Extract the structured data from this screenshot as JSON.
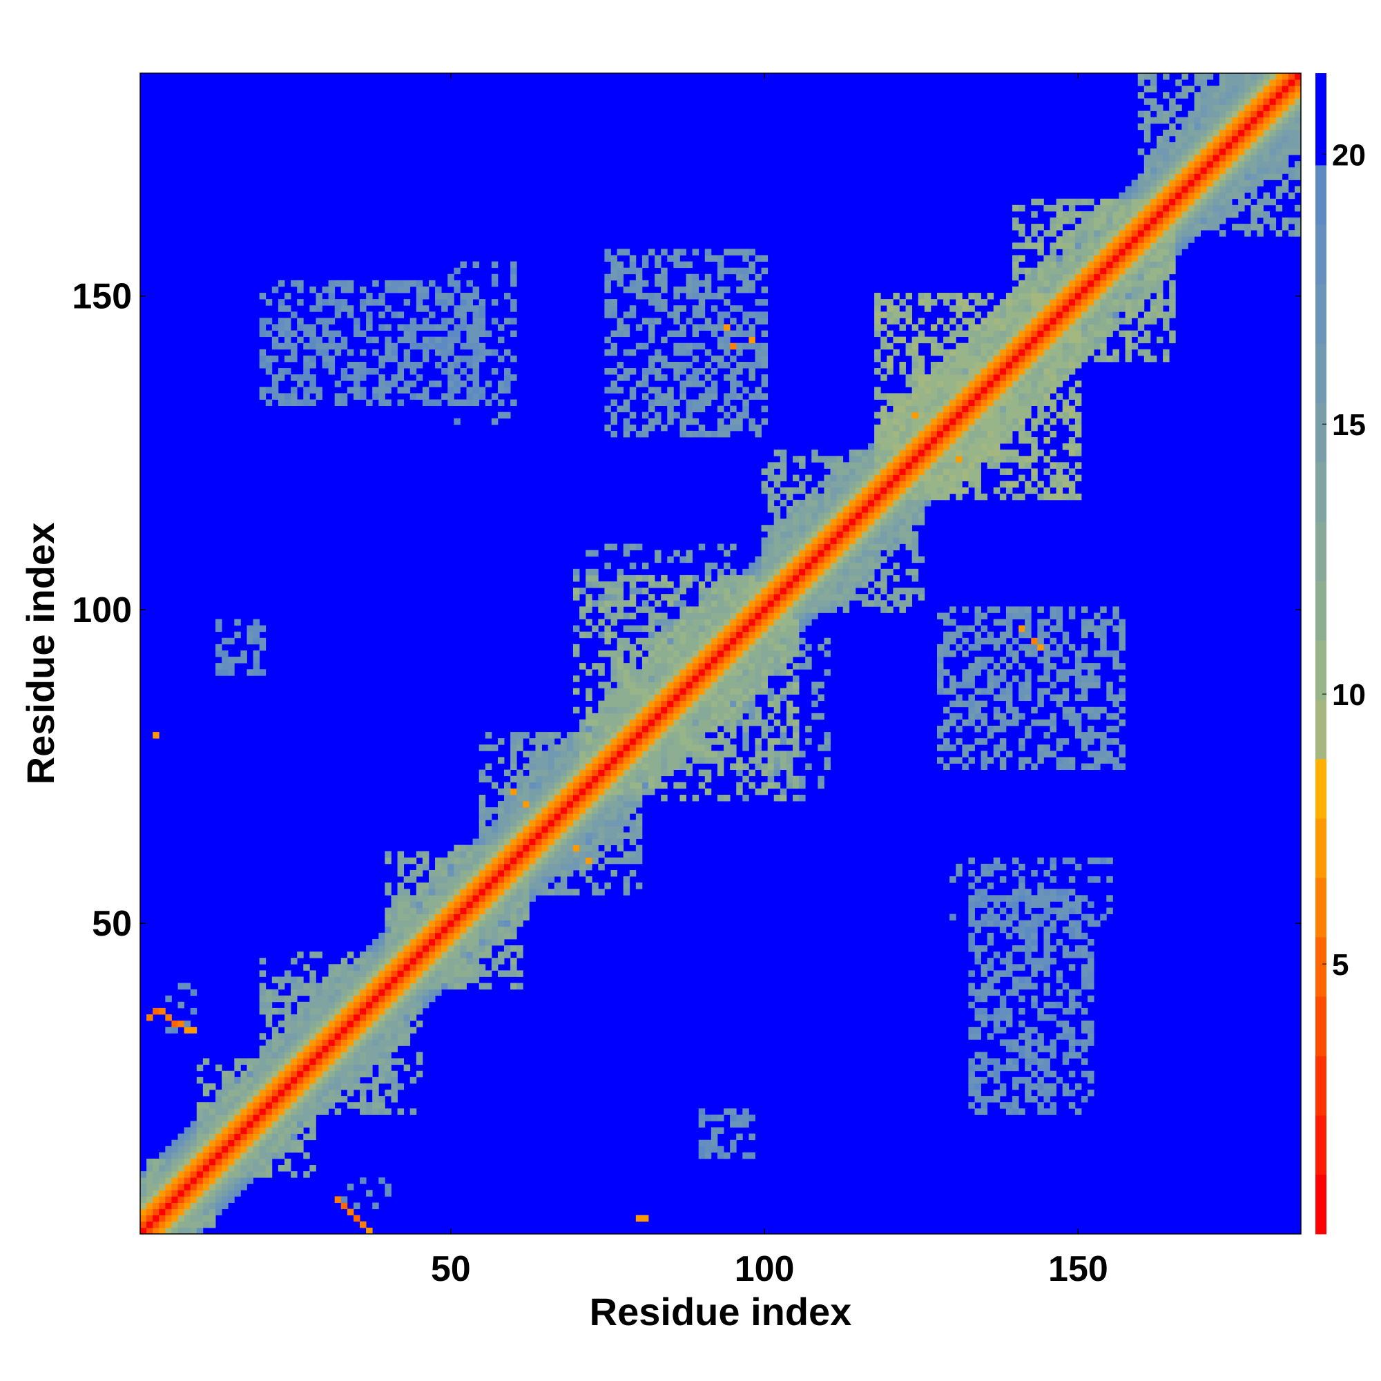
{
  "chart_data": {
    "type": "heatmap",
    "title": "",
    "xlabel": "Residue index",
    "ylabel": "Residue index",
    "n_residues": 185,
    "xlim": [
      1,
      185
    ],
    "ylim": [
      1,
      185
    ],
    "x_ticks": [
      50,
      100,
      150
    ],
    "y_ticks": [
      50,
      100,
      150
    ],
    "colorbar": {
      "range": [
        0,
        21.5
      ],
      "ticks": [
        5,
        10,
        15,
        20
      ],
      "levels": [
        {
          "from": 0,
          "to": 1.1,
          "color": "#ff0000"
        },
        {
          "from": 1.1,
          "to": 2.2,
          "color": "#ff1a00"
        },
        {
          "from": 2.2,
          "to": 3.3,
          "color": "#ff3300"
        },
        {
          "from": 3.3,
          "to": 4.4,
          "color": "#ff4d00"
        },
        {
          "from": 4.4,
          "to": 5.5,
          "color": "#ff6600"
        },
        {
          "from": 5.5,
          "to": 6.6,
          "color": "#ff7f00"
        },
        {
          "from": 6.6,
          "to": 7.7,
          "color": "#ff9900"
        },
        {
          "from": 7.7,
          "to": 8.8,
          "color": "#ffb000"
        },
        {
          "from": 8.8,
          "to": 9.9,
          "color": "#a3b77f"
        },
        {
          "from": 9.9,
          "to": 11.0,
          "color": "#98b489"
        },
        {
          "from": 11.0,
          "to": 12.1,
          "color": "#8eae91"
        },
        {
          "from": 12.1,
          "to": 13.2,
          "color": "#86a99a"
        },
        {
          "from": 13.2,
          "to": 14.3,
          "color": "#7fa4a1"
        },
        {
          "from": 14.3,
          "to": 15.4,
          "color": "#789ea9"
        },
        {
          "from": 15.4,
          "to": 16.5,
          "color": "#7199b1"
        },
        {
          "from": 16.5,
          "to": 17.6,
          "color": "#6a94b8"
        },
        {
          "from": 17.6,
          "to": 18.7,
          "color": "#648fbe"
        },
        {
          "from": 18.7,
          "to": 19.8,
          "color": "#5e8ac4"
        },
        {
          "from": 19.8,
          "to": 21.5,
          "color": "#0000ff"
        }
      ]
    },
    "background_value": 21,
    "diagonal_profile": [
      {
        "offset": 0,
        "value": 0.5
      },
      {
        "offset": 1,
        "value": 3.8
      },
      {
        "offset": 2,
        "value": 5.6
      },
      {
        "offset": 3,
        "value": 7.0
      },
      {
        "offset": 4,
        "value": 9.5
      },
      {
        "offset": 5,
        "value": 11.5
      },
      {
        "offset": 6,
        "value": 13.5
      },
      {
        "offset": 7,
        "value": 15.0
      },
      {
        "offset": 8,
        "value": 16.5
      },
      {
        "offset": 9,
        "value": 18.5
      }
    ],
    "contact_regions": [
      {
        "x": [
          1,
          10
        ],
        "y": [
          1,
          12
        ],
        "value": 13
      },
      {
        "x": [
          10,
          25
        ],
        "y": [
          10,
          28
        ],
        "value": 13
      },
      {
        "x": [
          20,
          42
        ],
        "y": [
          22,
          45
        ],
        "value": 14
      },
      {
        "x": [
          40,
          62
        ],
        "y": [
          40,
          62
        ],
        "value": 13
      },
      {
        "x": [
          55,
          80
        ],
        "y": [
          58,
          80
        ],
        "value": 15
      },
      {
        "x": [
          70,
          105
        ],
        "y": [
          72,
          105
        ],
        "value": 12
      },
      {
        "x": [
          100,
          125
        ],
        "y": [
          100,
          125
        ],
        "value": 14
      },
      {
        "x": [
          118,
          150
        ],
        "y": [
          118,
          150
        ],
        "value": 11
      },
      {
        "x": [
          140,
          165
        ],
        "y": [
          140,
          165
        ],
        "value": 12
      },
      {
        "x": [
          160,
          185
        ],
        "y": [
          160,
          185
        ],
        "value": 15
      },
      {
        "x": [
          75,
          100
        ],
        "y": [
          128,
          157
        ],
        "value": 17
      },
      {
        "x": [
          128,
          157
        ],
        "y": [
          75,
          100
        ],
        "value": 17
      },
      {
        "x": [
          95,
          110
        ],
        "y": [
          70,
          95
        ],
        "value": 16
      },
      {
        "x": [
          20,
          55
        ],
        "y": [
          133,
          152
        ],
        "value": 18
      },
      {
        "x": [
          133,
          152
        ],
        "y": [
          20,
          55
        ],
        "value": 18
      },
      {
        "x": [
          13,
          20
        ],
        "y": [
          90,
          98
        ],
        "value": 18
      },
      {
        "x": [
          90,
          98
        ],
        "y": [
          13,
          20
        ],
        "value": 18
      },
      {
        "x": [
          130,
          155
        ],
        "y": [
          50,
          60
        ],
        "value": 18
      },
      {
        "x": [
          5,
          10
        ],
        "y": [
          33,
          40
        ],
        "value": 18
      }
    ],
    "contact_points": [
      {
        "x": 2,
        "y": 35,
        "value": 6
      },
      {
        "x": 3,
        "y": 36,
        "value": 5
      },
      {
        "x": 4,
        "y": 36,
        "value": 6
      },
      {
        "x": 5,
        "y": 35,
        "value": 6
      },
      {
        "x": 6,
        "y": 34,
        "value": 5
      },
      {
        "x": 7,
        "y": 34,
        "value": 6
      },
      {
        "x": 8,
        "y": 33,
        "value": 7
      },
      {
        "x": 9,
        "y": 33,
        "value": 7
      },
      {
        "x": 3,
        "y": 80,
        "value": 7
      },
      {
        "x": 32,
        "y": 6,
        "value": 6
      },
      {
        "x": 33,
        "y": 5,
        "value": 5
      },
      {
        "x": 34,
        "y": 4,
        "value": 6
      },
      {
        "x": 35,
        "y": 3,
        "value": 5
      },
      {
        "x": 36,
        "y": 2,
        "value": 6
      },
      {
        "x": 37,
        "y": 1,
        "value": 7
      },
      {
        "x": 80,
        "y": 3,
        "value": 7
      },
      {
        "x": 81,
        "y": 3,
        "value": 7
      },
      {
        "x": 94,
        "y": 145,
        "value": 7
      },
      {
        "x": 98,
        "y": 143,
        "value": 7
      },
      {
        "x": 95,
        "y": 142,
        "value": 6
      },
      {
        "x": 141,
        "y": 97,
        "value": 7
      },
      {
        "x": 143,
        "y": 95,
        "value": 6
      },
      {
        "x": 144,
        "y": 94,
        "value": 7
      },
      {
        "x": 60,
        "y": 71,
        "value": 7
      },
      {
        "x": 62,
        "y": 69,
        "value": 7
      },
      {
        "x": 70,
        "y": 62,
        "value": 7
      },
      {
        "x": 72,
        "y": 60,
        "value": 7
      },
      {
        "x": 124,
        "y": 131,
        "value": 7
      },
      {
        "x": 126,
        "y": 127,
        "value": 7
      },
      {
        "x": 131,
        "y": 124,
        "value": 7
      },
      {
        "x": 40,
        "y": 43,
        "value": 7
      },
      {
        "x": 43,
        "y": 40,
        "value": 7
      }
    ]
  }
}
